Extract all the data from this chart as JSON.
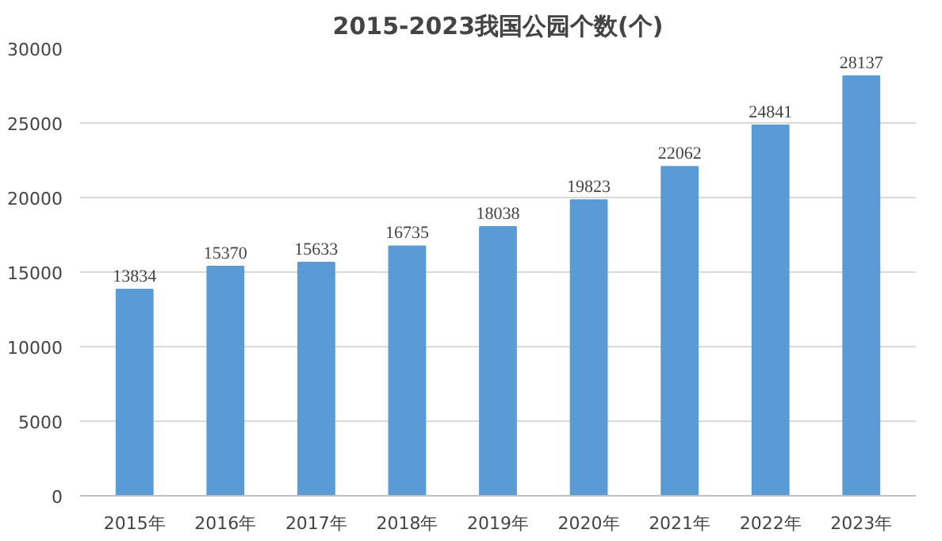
{
  "chart_data": {
    "type": "bar",
    "title": "2015-2023我国公园个数(个)",
    "categories": [
      "2015年",
      "2016年",
      "2017年",
      "2018年",
      "2019年",
      "2020年",
      "2021年",
      "2022年",
      "2023年"
    ],
    "values": [
      13834,
      15370,
      15633,
      16735,
      18038,
      19823,
      22062,
      24841,
      28137
    ],
    "color": "#5b9bd5",
    "ylim": [
      0,
      30000
    ],
    "yticks": [
      0,
      5000,
      10000,
      15000,
      20000,
      25000,
      30000
    ],
    "grid": "y",
    "data_labels": true
  }
}
